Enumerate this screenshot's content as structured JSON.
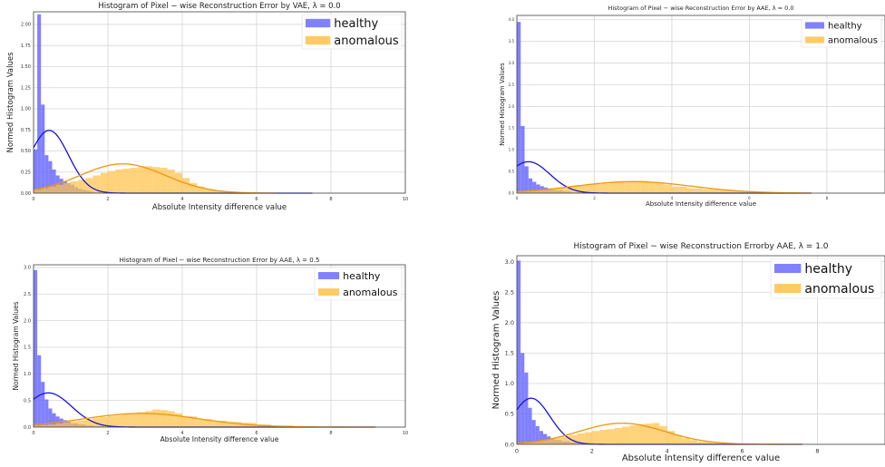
{
  "chart_data": [
    {
      "type": "bar",
      "title": "Histogram of Pixel − wise Reconstruction Error by VAE,  λ = 0.0",
      "xlabel": "Absolute Intensity difference value",
      "ylabel": "Normed Histogram Values",
      "xlim": [
        0,
        10
      ],
      "ylim": [
        0,
        2.15
      ],
      "xticks": [
        "0",
        "2",
        "4",
        "6",
        "8",
        "10"
      ],
      "yticks": [
        "0.00",
        "0.25",
        "0.50",
        "0.75",
        "1.00",
        "1.25",
        "1.50",
        "1.75",
        "2.00"
      ],
      "ytick_values": [
        0,
        0.25,
        0.5,
        0.75,
        1.0,
        1.25,
        1.5,
        1.75,
        2.0
      ],
      "grid": true,
      "legend": "top-right",
      "series": [
        {
          "name": "healthy",
          "color": "#6b6bff",
          "bins": [
            [
              0,
              0.1,
              0.52
            ],
            [
              0.1,
              0.2,
              2.12
            ],
            [
              0.2,
              0.3,
              1.05
            ],
            [
              0.3,
              0.4,
              0.45
            ],
            [
              0.4,
              0.5,
              0.38
            ],
            [
              0.5,
              0.6,
              0.28
            ],
            [
              0.6,
              0.7,
              0.21
            ],
            [
              0.7,
              0.8,
              0.17
            ],
            [
              0.8,
              0.9,
              0.14
            ],
            [
              0.9,
              1.0,
              0.12
            ],
            [
              1.0,
              1.1,
              0.1
            ],
            [
              1.1,
              1.2,
              0.07
            ],
            [
              1.2,
              1.3,
              0.05
            ],
            [
              1.3,
              1.4,
              0.04
            ],
            [
              1.4,
              1.5,
              0.03
            ],
            [
              1.5,
              1.6,
              0.02
            ],
            [
              1.6,
              1.8,
              0.01
            ]
          ],
          "curve": {
            "mean": 0.42,
            "sd": 0.52,
            "scale": 0.97,
            "xmax": 7.5,
            "color": "#1515d9"
          }
        },
        {
          "name": "anomalous",
          "color": "#ffc24a",
          "bins": [
            [
              0,
              0.2,
              0.04
            ],
            [
              0.2,
              0.4,
              0.06
            ],
            [
              0.4,
              0.6,
              0.08
            ],
            [
              0.6,
              0.8,
              0.1
            ],
            [
              0.8,
              1.0,
              0.12
            ],
            [
              1.0,
              1.2,
              0.14
            ],
            [
              1.2,
              1.4,
              0.16
            ],
            [
              1.4,
              1.6,
              0.18
            ],
            [
              1.6,
              1.8,
              0.21
            ],
            [
              1.8,
              2.0,
              0.24
            ],
            [
              2.0,
              2.2,
              0.26
            ],
            [
              2.2,
              2.4,
              0.28
            ],
            [
              2.4,
              2.6,
              0.29
            ],
            [
              2.6,
              2.8,
              0.3
            ],
            [
              2.8,
              3.0,
              0.31
            ],
            [
              3.0,
              3.2,
              0.32
            ],
            [
              3.2,
              3.4,
              0.31
            ],
            [
              3.4,
              3.6,
              0.3
            ],
            [
              3.6,
              3.8,
              0.28
            ],
            [
              3.8,
              4.0,
              0.24
            ],
            [
              4.0,
              4.2,
              0.18
            ],
            [
              4.2,
              4.4,
              0.12
            ],
            [
              4.4,
              4.6,
              0.08
            ],
            [
              4.6,
              4.8,
              0.05
            ],
            [
              4.8,
              5.0,
              0.03
            ],
            [
              5.0,
              5.4,
              0.02
            ],
            [
              5.4,
              6.0,
              0.01
            ]
          ],
          "curve": {
            "mean": 2.4,
            "sd": 1.15,
            "scale": 1.0,
            "xmax": 6.5,
            "color": "#f0960a"
          }
        }
      ]
    },
    {
      "type": "bar",
      "title": "Histogram of Pixel − wise Reconstruction Error by AAE,  λ = 0.0",
      "xlabel": "Absolute Intensity difference value",
      "ylabel": "Normed Histogram Values",
      "xlim": [
        0,
        9.5
      ],
      "ylim": [
        0,
        4.1
      ],
      "xticks": [
        "0",
        "2",
        "4",
        "6",
        "8"
      ],
      "yticks": [
        "0.0",
        "0.5",
        "1.0",
        "1.5",
        "2.0",
        "2.5",
        "3.0",
        "3.5",
        "4.0"
      ],
      "ytick_values": [
        0,
        0.5,
        1.0,
        1.5,
        2.0,
        2.5,
        3.0,
        3.5,
        4.0
      ],
      "grid": true,
      "legend": "top-right",
      "series": [
        {
          "name": "healthy",
          "color": "#6b6bff",
          "bins": [
            [
              0,
              0.1,
              3.95
            ],
            [
              0.1,
              0.2,
              1.55
            ],
            [
              0.2,
              0.3,
              0.62
            ],
            [
              0.3,
              0.4,
              0.34
            ],
            [
              0.4,
              0.5,
              0.26
            ],
            [
              0.5,
              0.6,
              0.2
            ],
            [
              0.6,
              0.7,
              0.16
            ],
            [
              0.7,
              0.8,
              0.13
            ],
            [
              0.8,
              0.9,
              0.1
            ],
            [
              0.9,
              1.0,
              0.08
            ],
            [
              1.0,
              1.2,
              0.06
            ],
            [
              1.2,
              1.4,
              0.04
            ],
            [
              1.4,
              1.7,
              0.02
            ]
          ],
          "curve": {
            "mean": 0.3,
            "sd": 0.55,
            "scale": 1.0,
            "xmax": 7.6,
            "color": "#1515d9"
          }
        },
        {
          "name": "anomalous",
          "color": "#ffc24a",
          "bins": [
            [
              0,
              0.2,
              0.04
            ],
            [
              0.2,
              0.4,
              0.05
            ],
            [
              0.4,
              0.6,
              0.06
            ],
            [
              0.6,
              0.8,
              0.08
            ],
            [
              0.8,
              1.0,
              0.1
            ],
            [
              1.0,
              1.2,
              0.12
            ],
            [
              1.2,
              1.4,
              0.14
            ],
            [
              1.4,
              1.6,
              0.16
            ],
            [
              1.6,
              1.8,
              0.18
            ],
            [
              1.8,
              2.0,
              0.2
            ],
            [
              2.0,
              2.2,
              0.21
            ],
            [
              2.2,
              2.4,
              0.22
            ],
            [
              2.4,
              2.6,
              0.24
            ],
            [
              2.6,
              2.8,
              0.26
            ],
            [
              2.8,
              3.0,
              0.27
            ],
            [
              3.0,
              3.2,
              0.28
            ],
            [
              3.2,
              3.4,
              0.28
            ],
            [
              3.4,
              3.6,
              0.26
            ],
            [
              3.6,
              3.8,
              0.24
            ],
            [
              3.8,
              4.0,
              0.2
            ],
            [
              4.0,
              4.4,
              0.15
            ],
            [
              4.4,
              4.8,
              0.11
            ],
            [
              4.8,
              5.2,
              0.09
            ],
            [
              5.2,
              5.6,
              0.07
            ],
            [
              5.6,
              6.0,
              0.05
            ],
            [
              6.0,
              6.6,
              0.03
            ],
            [
              6.6,
              7.2,
              0.02
            ],
            [
              7.2,
              7.6,
              0.01
            ]
          ],
          "curve": {
            "mean": 3.0,
            "sd": 1.5,
            "scale": 1.0,
            "xmax": 7.6,
            "color": "#f0960a"
          }
        }
      ]
    },
    {
      "type": "bar",
      "title": "Histogram of Pixel − wise Reconstruction Error by AAE,  λ = 0.5",
      "xlabel": "Absolute Intensity difference value",
      "ylabel": "Normed Histogram Values",
      "xlim": [
        0,
        10
      ],
      "ylim": [
        0,
        3.05
      ],
      "xticks": [
        "0",
        "2",
        "4",
        "6",
        "8",
        "10"
      ],
      "yticks": [
        "0.0",
        "0.5",
        "1.0",
        "1.5",
        "2.0",
        "2.5",
        "3.0"
      ],
      "ytick_values": [
        0,
        0.5,
        1.0,
        1.5,
        2.0,
        2.5,
        3.0
      ],
      "grid": true,
      "legend": "top-right",
      "series": [
        {
          "name": "healthy",
          "color": "#6b6bff",
          "bins": [
            [
              0,
              0.1,
              2.95
            ],
            [
              0.1,
              0.2,
              1.35
            ],
            [
              0.2,
              0.3,
              0.85
            ],
            [
              0.3,
              0.4,
              0.52
            ],
            [
              0.4,
              0.5,
              0.35
            ],
            [
              0.5,
              0.6,
              0.26
            ],
            [
              0.6,
              0.7,
              0.2
            ],
            [
              0.7,
              0.8,
              0.16
            ],
            [
              0.8,
              0.9,
              0.13
            ],
            [
              0.9,
              1.0,
              0.1
            ],
            [
              1.0,
              1.2,
              0.07
            ],
            [
              1.2,
              1.4,
              0.05
            ],
            [
              1.4,
              1.6,
              0.03
            ],
            [
              1.6,
              1.9,
              0.02
            ]
          ],
          "curve": {
            "mean": 0.4,
            "sd": 0.62,
            "scale": 1.0,
            "xmax": 9.2,
            "color": "#1515d9"
          }
        },
        {
          "name": "anomalous",
          "color": "#ffc24a",
          "bins": [
            [
              0,
              0.2,
              0.03
            ],
            [
              0.2,
              0.4,
              0.04
            ],
            [
              0.4,
              0.6,
              0.05
            ],
            [
              0.6,
              0.8,
              0.07
            ],
            [
              0.8,
              1.0,
              0.09
            ],
            [
              1.0,
              1.2,
              0.11
            ],
            [
              1.2,
              1.4,
              0.13
            ],
            [
              1.4,
              1.6,
              0.15
            ],
            [
              1.6,
              1.8,
              0.17
            ],
            [
              1.8,
              2.0,
              0.19
            ],
            [
              2.0,
              2.2,
              0.21
            ],
            [
              2.2,
              2.4,
              0.22
            ],
            [
              2.4,
              2.6,
              0.24
            ],
            [
              2.6,
              2.8,
              0.26
            ],
            [
              2.8,
              3.0,
              0.28
            ],
            [
              3.0,
              3.2,
              0.3
            ],
            [
              3.2,
              3.4,
              0.33
            ],
            [
              3.4,
              3.6,
              0.32
            ],
            [
              3.6,
              3.8,
              0.3
            ],
            [
              3.8,
              4.0,
              0.26
            ],
            [
              4.0,
              4.4,
              0.2
            ],
            [
              4.4,
              4.8,
              0.15
            ],
            [
              4.8,
              5.2,
              0.12
            ],
            [
              5.2,
              5.6,
              0.1
            ],
            [
              5.6,
              6.0,
              0.08
            ],
            [
              6.0,
              6.4,
              0.05
            ],
            [
              6.4,
              7.0,
              0.03
            ],
            [
              7.0,
              7.6,
              0.02
            ],
            [
              7.6,
              8.4,
              0.01
            ]
          ],
          "curve": {
            "mean": 2.9,
            "sd": 1.55,
            "scale": 1.0,
            "xmax": 9.2,
            "color": "#f0960a"
          }
        }
      ]
    },
    {
      "type": "bar",
      "title": "Histogram of Pixel − wise Reconstruction Errorby AAE,  λ = 1.0",
      "xlabel": "Absolute Intensity difference value",
      "ylabel": "Normed Histogram Values",
      "xlim": [
        0,
        9.8
      ],
      "ylim": [
        0,
        3.1
      ],
      "xticks": [
        "0",
        "2",
        "4",
        "6",
        "8"
      ],
      "yticks": [
        "0.0",
        "0.5",
        "1.0",
        "1.5",
        "2.0",
        "2.5",
        "3.0"
      ],
      "ytick_values": [
        0,
        0.5,
        1.0,
        1.5,
        2.0,
        2.5,
        3.0
      ],
      "grid": true,
      "legend": "top-right",
      "series": [
        {
          "name": "healthy",
          "color": "#6b6bff",
          "bins": [
            [
              0,
              0.1,
              3.02
            ],
            [
              0.1,
              0.2,
              1.5
            ],
            [
              0.2,
              0.3,
              1.18
            ],
            [
              0.3,
              0.4,
              0.6
            ],
            [
              0.4,
              0.5,
              0.4
            ],
            [
              0.5,
              0.6,
              0.3
            ],
            [
              0.6,
              0.7,
              0.22
            ],
            [
              0.7,
              0.8,
              0.17
            ],
            [
              0.8,
              0.9,
              0.13
            ],
            [
              0.9,
              1.0,
              0.1
            ],
            [
              1.0,
              1.2,
              0.07
            ],
            [
              1.2,
              1.4,
              0.05
            ],
            [
              1.4,
              1.7,
              0.03
            ]
          ],
          "curve": {
            "mean": 0.38,
            "sd": 0.5,
            "scale": 0.95,
            "xmax": 7.6,
            "color": "#1515d9"
          }
        },
        {
          "name": "anomalous",
          "color": "#ffc24a",
          "bins": [
            [
              0,
              0.2,
              0.03
            ],
            [
              0.2,
              0.4,
              0.04
            ],
            [
              0.4,
              0.6,
              0.05
            ],
            [
              0.6,
              0.8,
              0.07
            ],
            [
              0.8,
              1.0,
              0.09
            ],
            [
              1.0,
              1.2,
              0.11
            ],
            [
              1.2,
              1.4,
              0.13
            ],
            [
              1.4,
              1.6,
              0.15
            ],
            [
              1.6,
              1.8,
              0.18
            ],
            [
              1.8,
              2.0,
              0.2
            ],
            [
              2.0,
              2.2,
              0.22
            ],
            [
              2.2,
              2.4,
              0.24
            ],
            [
              2.4,
              2.6,
              0.25
            ],
            [
              2.6,
              2.8,
              0.27
            ],
            [
              2.8,
              3.0,
              0.29
            ],
            [
              3.0,
              3.2,
              0.31
            ],
            [
              3.2,
              3.4,
              0.33
            ],
            [
              3.4,
              3.6,
              0.34
            ],
            [
              3.6,
              3.8,
              0.35
            ],
            [
              3.8,
              4.0,
              0.3
            ],
            [
              4.0,
              4.2,
              0.22
            ],
            [
              4.2,
              4.4,
              0.15
            ],
            [
              4.4,
              4.6,
              0.1
            ],
            [
              4.6,
              4.8,
              0.07
            ],
            [
              4.8,
              5.2,
              0.04
            ],
            [
              5.2,
              5.8,
              0.02
            ],
            [
              5.8,
              6.4,
              0.01
            ]
          ],
          "curve": {
            "mean": 2.8,
            "sd": 1.15,
            "scale": 1.0,
            "xmax": 7.6,
            "color": "#f0960a"
          }
        }
      ]
    }
  ]
}
